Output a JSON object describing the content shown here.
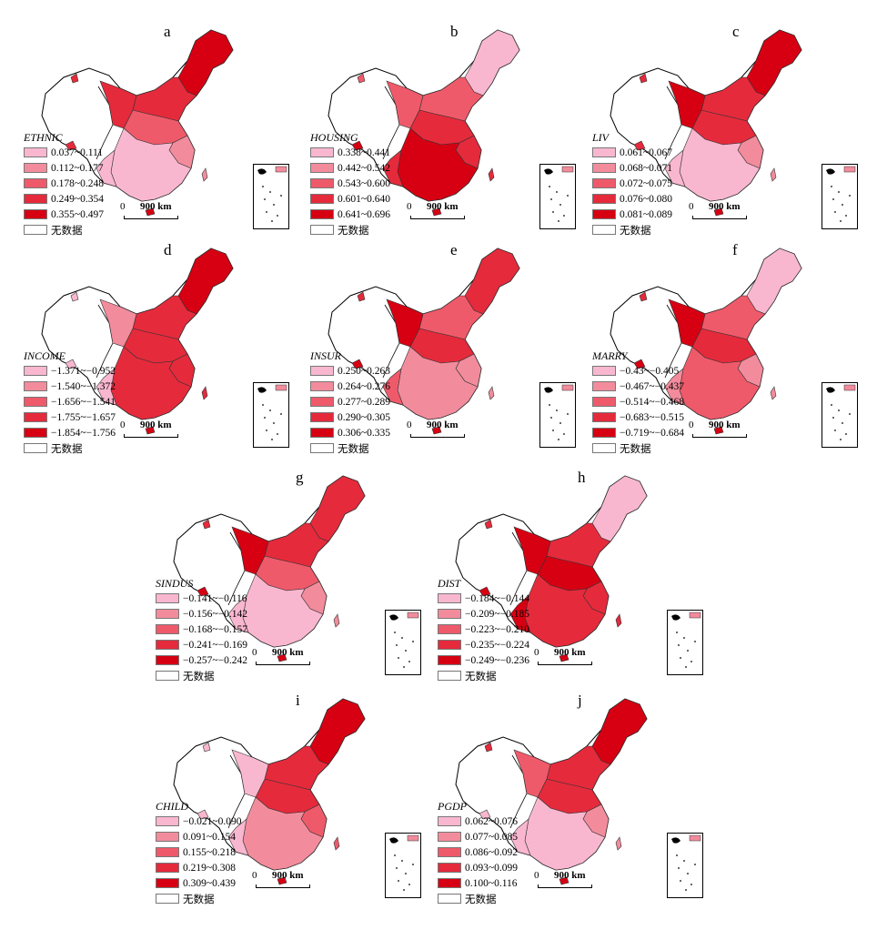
{
  "legend_colors": [
    "#f9b7cf",
    "#f28c9c",
    "#ef5a6a",
    "#e52a3c",
    "#d60012"
  ],
  "no_data_color": "#ffffff",
  "scale_zero": "0",
  "scale_label": "900 km",
  "panels": [
    {
      "letter": "a",
      "title": "ETHNIC",
      "ranges": [
        "0.037~0.111",
        "0.112~0.177",
        "0.178~0.248",
        "0.249~0.354",
        "0.355~0.497"
      ],
      "no_data": "无数据"
    },
    {
      "letter": "b",
      "title": "HOUSING",
      "ranges": [
        "0.338~0.441",
        "0.442~0.542",
        "0.543~0.600",
        "0.601~0.640",
        "0.641~0.696"
      ],
      "no_data": "无数据"
    },
    {
      "letter": "c",
      "title": "LIV",
      "ranges": [
        "0.061~0.067",
        "0.068~0.071",
        "0.072~0.075",
        "0.076~0.080",
        "0.081~0.089"
      ],
      "no_data": "无数据"
    },
    {
      "letter": "d",
      "title": "INCOME",
      "ranges": [
        "−1.371~−0.952",
        "−1.540~−1.372",
        "−1.656~−1.541",
        "−1.755~−1.657",
        "−1.854~−1.756"
      ],
      "no_data": "无数据"
    },
    {
      "letter": "e",
      "title": "INSUR",
      "ranges": [
        "0.250~0.263",
        "0.264~0.276",
        "0.277~0.289",
        "0.290~0.305",
        "0.306~0.335"
      ],
      "no_data": "无数据"
    },
    {
      "letter": "f",
      "title": "MARRY",
      "ranges": [
        "−0.43~−0.405",
        "−0.467~−0.437",
        "−0.514~−0.468",
        "−0.683~−0.515",
        "−0.719~−0.684"
      ],
      "no_data": "无数据"
    },
    {
      "letter": "g",
      "title": "SINDUS",
      "ranges": [
        "−0.141~−0.116",
        "−0.156~−0.142",
        "−0.168~−0.157",
        "−0.241~−0.169",
        "−0.257~−0.242"
      ],
      "no_data": "无数据"
    },
    {
      "letter": "h",
      "title": "DIST",
      "ranges": [
        "−0.184~−0.144",
        "−0.209~−0.185",
        "−0.223~−0.210",
        "−0.235~−0.224",
        "−0.249~−0.236"
      ],
      "no_data": "无数据"
    },
    {
      "letter": "i",
      "title": "CHILD",
      "ranges": [
        "−0.021~0.090",
        "0.091~0.154",
        "0.155~0.218",
        "0.219~0.308",
        "0.309~0.439"
      ],
      "no_data": "无数据"
    },
    {
      "letter": "j",
      "title": "PGDP",
      "ranges": [
        "0.062~0.076",
        "0.077~0.085",
        "0.086~0.092",
        "0.093~0.099",
        "0.100~0.116"
      ],
      "no_data": "无数据"
    }
  ]
}
